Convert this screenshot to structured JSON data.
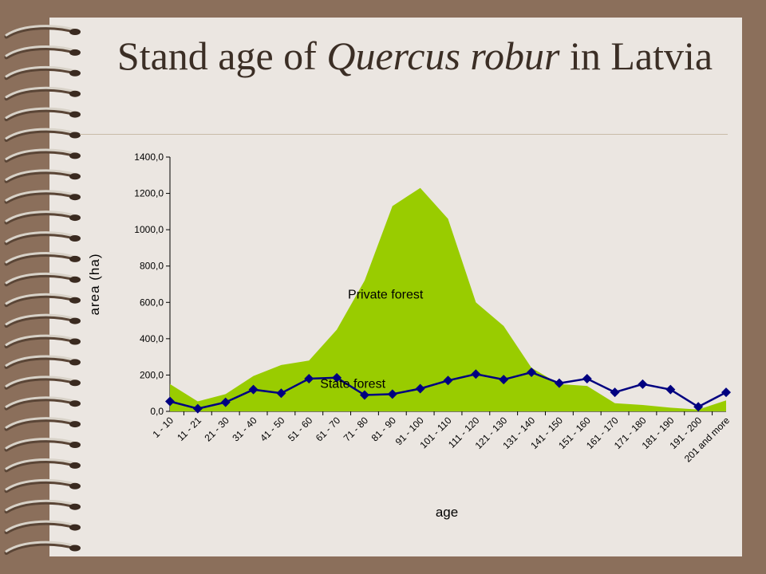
{
  "slide": {
    "title_part1": "Stand age of ",
    "title_italic": "Quercus robur",
    "title_part2": " in Latvia"
  },
  "colors": {
    "background": "#8b6f5b",
    "paper": "#ebe6e1",
    "private_fill": "#99cc00",
    "state_line": "#000080"
  },
  "chart_data": {
    "type": "area",
    "xlabel": "age",
    "ylabel": "area (ha)",
    "ylim": [
      0,
      1400
    ],
    "ytick_step": 200,
    "ytick_labels": [
      "0,0",
      "200,0",
      "400,0",
      "600,0",
      "800,0",
      "1000,0",
      "1200,0",
      "1400,0"
    ],
    "categories": [
      "1 - 10",
      "11 - 21",
      "21 - 30",
      "31 - 40",
      "41 - 50",
      "51 - 60",
      "61 - 70",
      "71 - 80",
      "81 - 90",
      "91 - 100",
      "101 - 110",
      "111 - 120",
      "121 - 130",
      "131 - 140",
      "141 - 150",
      "151 - 160",
      "161 - 170",
      "171 - 180",
      "181 - 190",
      "191 - 200",
      "201 and more"
    ],
    "series": [
      {
        "name": "Private forest",
        "kind": "area",
        "color": "#99cc00",
        "values": [
          150,
          55,
          95,
          195,
          255,
          280,
          450,
          720,
          1130,
          1230,
          1060,
          600,
          470,
          240,
          150,
          140,
          45,
          35,
          20,
          10,
          60
        ]
      },
      {
        "name": "State forest",
        "kind": "line",
        "color": "#000080",
        "values": [
          55,
          15,
          50,
          120,
          100,
          180,
          185,
          90,
          95,
          125,
          170,
          205,
          175,
          215,
          155,
          180,
          105,
          150,
          120,
          25,
          105
        ]
      }
    ],
    "grid": false,
    "legend": "none"
  }
}
